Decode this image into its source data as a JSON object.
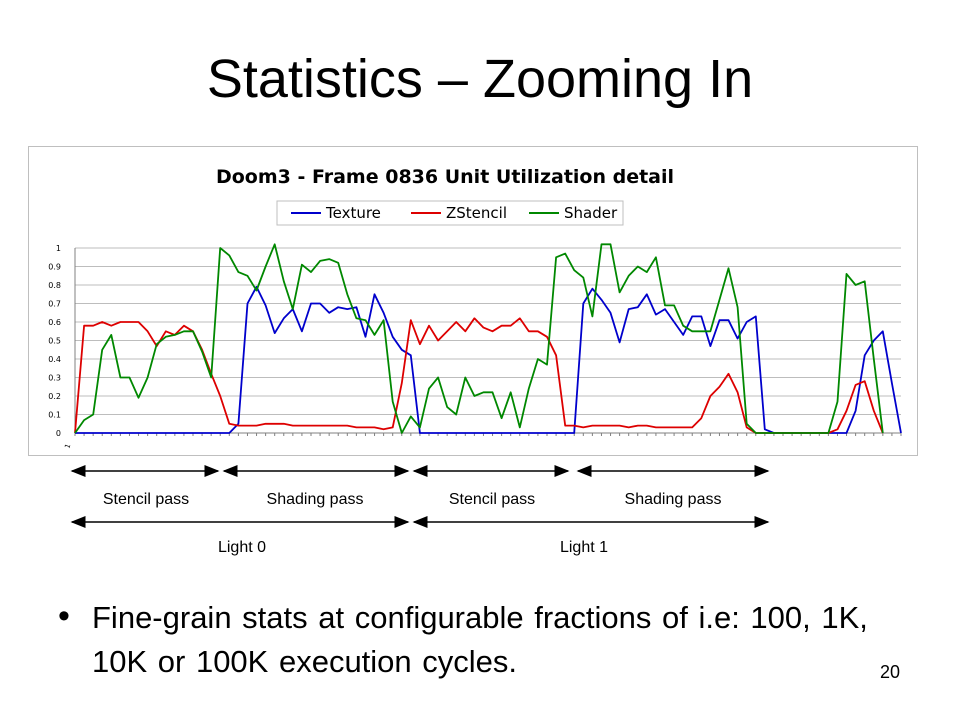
{
  "slide": {
    "title": "Statistics – Zooming In",
    "bullet": "Fine-grain stats at configurable fractions of i.e: 100, 1K, 10K or 100K execution cycles.",
    "page_number": "20"
  },
  "annotations": {
    "passes": [
      "Stencil pass",
      "Shading pass",
      "Stencil pass",
      "Shading pass"
    ],
    "lights": [
      "Light 0",
      "Light 1"
    ]
  },
  "chart_data": {
    "type": "line",
    "title": "Doom3 - Frame 0836 Unit Utilization detail",
    "xlabel": "",
    "ylabel": "",
    "ylim": [
      0,
      1
    ],
    "yticks": [
      "0",
      "0.1",
      "0.2",
      "0.3",
      "0.4",
      "0.5",
      "0.6",
      "0.7",
      "0.8",
      "0.9",
      "1"
    ],
    "x_first_label": "1",
    "grid": true,
    "legend": "top",
    "series": [
      {
        "name": "Texture",
        "color": "#0000cc",
        "values": [
          0,
          0,
          0,
          0,
          0,
          0,
          0,
          0,
          0,
          0,
          0,
          0,
          0,
          0,
          0,
          0,
          0,
          0,
          0.05,
          0.7,
          0.79,
          0.69,
          0.54,
          0.62,
          0.67,
          0.55,
          0.7,
          0.7,
          0.65,
          0.68,
          0.67,
          0.68,
          0.52,
          0.75,
          0.65,
          0.52,
          0.45,
          0.42,
          0,
          0,
          0,
          0,
          0,
          0,
          0,
          0,
          0,
          0,
          0,
          0,
          0,
          0,
          0,
          0,
          0,
          0,
          0.7,
          0.78,
          0.72,
          0.65,
          0.49,
          0.67,
          0.68,
          0.75,
          0.64,
          0.67,
          0.6,
          0.53,
          0.63,
          0.63,
          0.47,
          0.61,
          0.61,
          0.51,
          0.6,
          0.63,
          0.02,
          0,
          0,
          0,
          0,
          0,
          0,
          0,
          0,
          0,
          0.12,
          0.42,
          0.5,
          0.55,
          0.27,
          0
        ]
      },
      {
        "name": "ZStencil",
        "color": "#dd0000",
        "values": [
          0,
          0.58,
          0.58,
          0.6,
          0.58,
          0.6,
          0.6,
          0.6,
          0.55,
          0.47,
          0.55,
          0.53,
          0.58,
          0.55,
          0.45,
          0.32,
          0.2,
          0.05,
          0.04,
          0.04,
          0.04,
          0.05,
          0.05,
          0.05,
          0.04,
          0.04,
          0.04,
          0.04,
          0.04,
          0.04,
          0.04,
          0.03,
          0.03,
          0.03,
          0.02,
          0.03,
          0.27,
          0.61,
          0.48,
          0.58,
          0.5,
          0.55,
          0.6,
          0.55,
          0.62,
          0.57,
          0.55,
          0.58,
          0.58,
          0.62,
          0.55,
          0.55,
          0.52,
          0.42,
          0.04,
          0.04,
          0.03,
          0.04,
          0.04,
          0.04,
          0.04,
          0.03,
          0.04,
          0.04,
          0.03,
          0.03,
          0.03,
          0.03,
          0.03,
          0.08,
          0.2,
          0.25,
          0.32,
          0.22,
          0.03,
          0,
          0,
          0,
          0,
          0,
          0,
          0,
          0,
          0,
          0.02,
          0.12,
          0.26,
          0.28,
          0.12,
          0
        ]
      },
      {
        "name": "Shader",
        "color": "#008800",
        "values": [
          0,
          0.07,
          0.1,
          0.45,
          0.53,
          0.3,
          0.3,
          0.19,
          0.3,
          0.48,
          0.52,
          0.53,
          0.55,
          0.55,
          0.44,
          0.3,
          1,
          0.96,
          0.87,
          0.85,
          0.77,
          0.9,
          1.02,
          0.82,
          0.67,
          0.91,
          0.87,
          0.93,
          0.94,
          0.92,
          0.75,
          0.62,
          0.61,
          0.53,
          0.61,
          0.17,
          0,
          0.09,
          0.03,
          0.24,
          0.3,
          0.14,
          0.1,
          0.3,
          0.2,
          0.22,
          0.22,
          0.08,
          0.22,
          0.03,
          0.24,
          0.4,
          0.37,
          0.95,
          0.97,
          0.88,
          0.84,
          0.63,
          1.02,
          1.02,
          0.76,
          0.85,
          0.9,
          0.87,
          0.95,
          0.69,
          0.69,
          0.58,
          0.55,
          0.55,
          0.55,
          0.72,
          0.89,
          0.68,
          0.05,
          0,
          0,
          0,
          0,
          0,
          0,
          0,
          0,
          0,
          0.17,
          0.86,
          0.8,
          0.82,
          0.4,
          0
        ]
      }
    ]
  }
}
